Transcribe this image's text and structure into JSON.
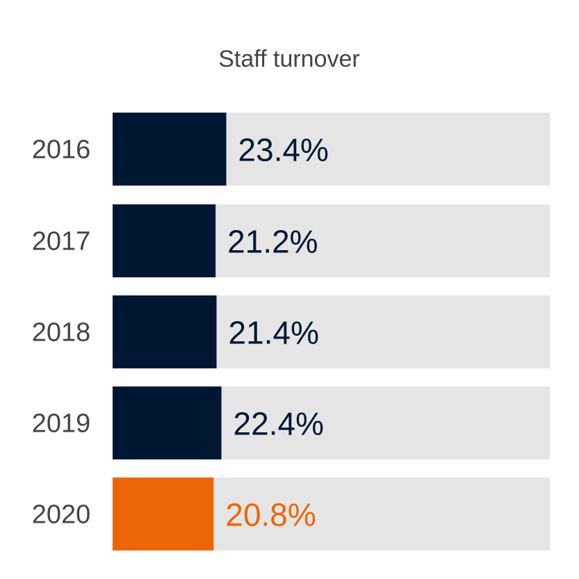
{
  "chart_data": {
    "type": "bar",
    "orientation": "horizontal",
    "title": "Staff turnover",
    "categories": [
      "2016",
      "2017",
      "2018",
      "2019",
      "2020"
    ],
    "values": [
      23.4,
      21.2,
      21.4,
      22.4,
      20.8
    ],
    "value_labels": [
      "23.4%",
      "21.2%",
      "21.4%",
      "22.4%",
      "20.8%"
    ],
    "xlim": [
      0,
      90
    ],
    "grid": false,
    "legend": "none",
    "highlight_index": 4
  },
  "colors": {
    "bar": "#001733",
    "highlight": "#ec6608",
    "track": "#e5e5e5",
    "title": "#444444",
    "year_label": "#444444"
  }
}
